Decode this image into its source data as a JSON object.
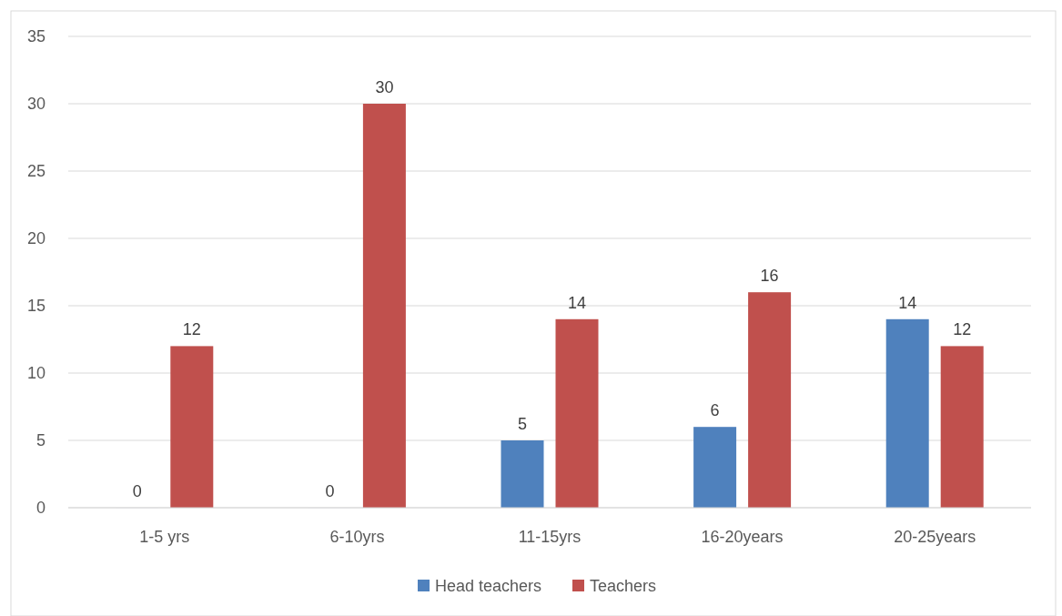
{
  "chart_data": {
    "type": "bar",
    "categories": [
      "1-5 yrs",
      "6-10yrs",
      "11-15yrs",
      "16-20years",
      "20-25years"
    ],
    "series": [
      {
        "name": "Head teachers",
        "color": "#4f81bd",
        "values": [
          0,
          0,
          5,
          6,
          14
        ]
      },
      {
        "name": "Teachers",
        "color": "#c0504d",
        "values": [
          12,
          30,
          14,
          16,
          12
        ]
      }
    ],
    "ylim": [
      0,
      35
    ],
    "yticks": [
      0,
      5,
      10,
      15,
      20,
      25,
      30,
      35
    ],
    "grid": "y",
    "legend": "bottom",
    "data_labels": true
  }
}
